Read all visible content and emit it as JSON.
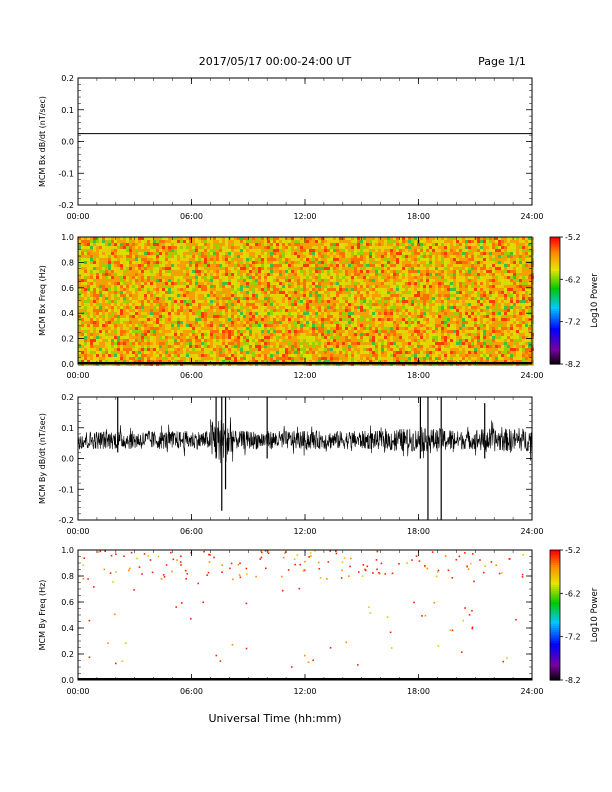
{
  "header": {
    "date_range": "2017/05/17  00:00-24:00 UT",
    "page": "Page 1/1"
  },
  "chart_data": [
    {
      "type": "line",
      "ylabel": "MCM Bx dB/dt (nT/sec)",
      "ylim": [
        -0.2,
        0.2
      ],
      "yticks": [
        "0.2",
        "0.1",
        "0.0",
        "-0.1",
        "-0.2"
      ],
      "xlim": [
        0,
        24
      ],
      "xticks": [
        "00:00",
        "06:00",
        "12:00",
        "18:00",
        "24:00"
      ],
      "series": [
        {
          "x": [
            0,
            24
          ],
          "y": [
            0.025,
            0.025
          ]
        }
      ]
    },
    {
      "type": "heatmap",
      "ylabel": "MCM Bx Freq (Hz)",
      "ylim": [
        0,
        1.0
      ],
      "yticks": [
        "1.0",
        "0.8",
        "0.6",
        "0.4",
        "0.2",
        "0.0"
      ],
      "xlim": [
        0,
        24
      ],
      "xticks": [
        "00:00",
        "06:00",
        "12:00",
        "18:00",
        "24:00"
      ],
      "colorbar": {
        "label": "Log10 Power",
        "ticks": [
          "-5.2",
          "-6.2",
          "-7.2",
          "-8.2"
        ],
        "range": [
          -8.2,
          -5.2
        ]
      },
      "fill": "dense noise spanning 0-1 Hz over the whole day, mostly orange/yellow with green speckle"
    },
    {
      "type": "line",
      "ylabel": "MCM By dB/dt (nT/sec)",
      "ylim": [
        -0.2,
        0.2
      ],
      "yticks": [
        "0.2",
        "0.1",
        "0.0",
        "-0.1",
        "-0.2"
      ],
      "xlim": [
        0,
        24
      ],
      "xticks": [
        "00:00",
        "06:00",
        "12:00",
        "18:00",
        "24:00"
      ],
      "baseline": 0.06,
      "noise_amplitude": 0.03,
      "spikes": [
        {
          "t": 2.1,
          "ymin": 0.02,
          "ymax": 0.2
        },
        {
          "t": 7.3,
          "ymin": 0.0,
          "ymax": 0.2
        },
        {
          "t": 7.6,
          "ymin": -0.17,
          "ymax": 0.2
        },
        {
          "t": 7.8,
          "ymin": -0.1,
          "ymax": 0.2
        },
        {
          "t": 10.0,
          "ymin": 0.0,
          "ymax": 0.2
        },
        {
          "t": 18.1,
          "ymin": 0.0,
          "ymax": 0.2
        },
        {
          "t": 18.5,
          "ymin": -0.2,
          "ymax": 0.2
        },
        {
          "t": 19.2,
          "ymin": -0.2,
          "ymax": 0.2
        },
        {
          "t": 21.5,
          "ymin": 0.0,
          "ymax": 0.18
        }
      ]
    },
    {
      "type": "heatmap",
      "ylabel": "MCM By Freq (Hz)",
      "ylim": [
        0,
        1.0
      ],
      "yticks": [
        "1.0",
        "0.8",
        "0.6",
        "0.4",
        "0.2",
        "0.0"
      ],
      "xlim": [
        0,
        24
      ],
      "xticks": [
        "00:00",
        "06:00",
        "12:00",
        "18:00",
        "24:00"
      ],
      "xlabel": "Universal Time (hh:mm)",
      "colorbar": {
        "label": "Log10 Power",
        "ticks": [
          "-5.2",
          "-6.2",
          "-7.2",
          "-8.2"
        ],
        "range": [
          -8.2,
          -5.2
        ]
      },
      "fill": "sparse red/orange dots, concentrated near 0.8-1.0 Hz"
    }
  ]
}
